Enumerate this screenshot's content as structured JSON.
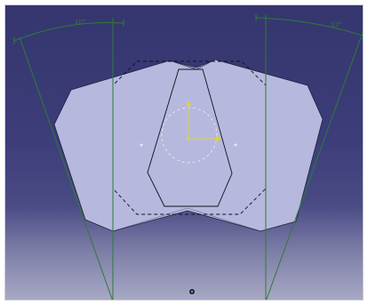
{
  "viewport": {
    "label_left_angle": "10°",
    "label_right_angle": "12°"
  },
  "colors": {
    "background_top": "#35366e",
    "background_bottom": "#a7a8c4",
    "part_fill": "#b7b8dd",
    "part_edge": "#1f2040",
    "construction": "#2f7a3a",
    "axis_yellow": "#d7cf55",
    "selection_dash": "#101020"
  },
  "icons": [
    "compass-origin-icon"
  ]
}
